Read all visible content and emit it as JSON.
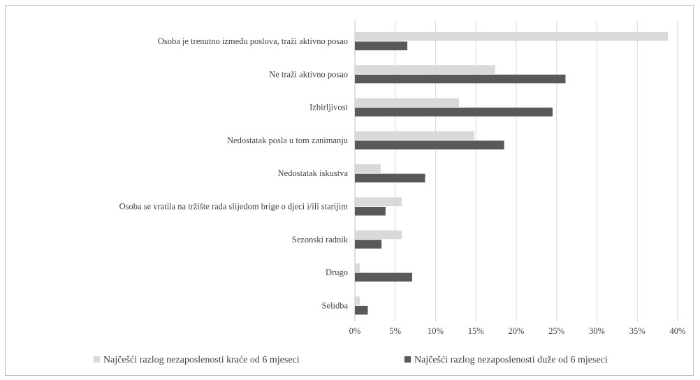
{
  "chart_data": {
    "type": "bar",
    "orientation": "horizontal",
    "categories": [
      "Osoba je trenutno između poslova, traži aktivno posao",
      "Ne traži aktivno posao",
      "Izbirljivost",
      "Nedostatak posla u tom zanimanju",
      "Nedostatak iskustva",
      "Osoba se vratila na tržište rada slijedom brige o djeci i/ili starijim",
      "Sezonski radnik",
      "Drugo",
      "Selidba"
    ],
    "series": [
      {
        "name": "Najčešći razlog nezaposlenosti kraće od 6 mjeseci",
        "color": "#d9d9d9",
        "values": [
          38.8,
          17.4,
          12.9,
          14.8,
          3.2,
          5.8,
          5.8,
          0.6,
          0.6
        ]
      },
      {
        "name": "Najčešći razlog nezaposlenosti duže od 6 mjeseci",
        "color": "#595959",
        "values": [
          6.5,
          26.1,
          24.5,
          18.5,
          8.7,
          3.8,
          3.3,
          7.1,
          1.6
        ]
      }
    ],
    "xlim": [
      0,
      40
    ],
    "xticks": [
      0,
      5,
      10,
      15,
      20,
      25,
      30,
      35,
      40
    ],
    "tick_format": "percent",
    "grid": true,
    "legend_position": "bottom"
  }
}
